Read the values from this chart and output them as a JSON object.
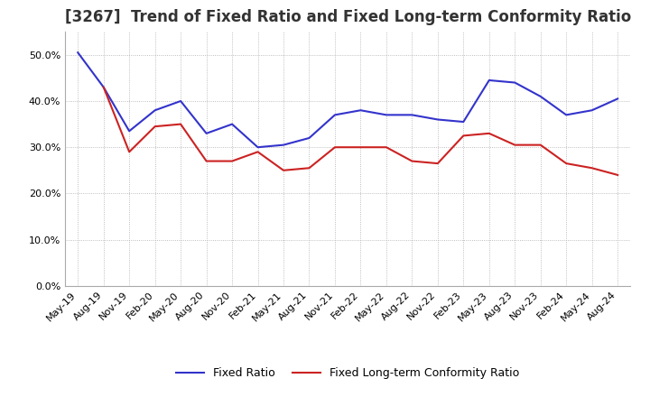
{
  "title": "[3267]  Trend of Fixed Ratio and Fixed Long-term Conformity Ratio",
  "x_labels": [
    "May-19",
    "Aug-19",
    "Nov-19",
    "Feb-20",
    "May-20",
    "Aug-20",
    "Nov-20",
    "Feb-21",
    "May-21",
    "Aug-21",
    "Nov-21",
    "Feb-22",
    "May-22",
    "Aug-22",
    "Nov-22",
    "Feb-23",
    "May-23",
    "Aug-23",
    "Nov-23",
    "Feb-24",
    "May-24",
    "Aug-24"
  ],
  "fixed_ratio": [
    50.5,
    43.0,
    33.5,
    38.0,
    40.0,
    33.0,
    35.0,
    30.0,
    30.5,
    32.0,
    37.0,
    38.0,
    37.0,
    37.0,
    36.0,
    35.5,
    44.5,
    44.0,
    41.0,
    37.0,
    38.0,
    40.5
  ],
  "fixed_lt_ratio": [
    null,
    43.0,
    29.0,
    34.5,
    35.0,
    27.0,
    27.0,
    29.0,
    25.0,
    25.5,
    30.0,
    30.0,
    30.0,
    27.0,
    26.5,
    32.5,
    33.0,
    30.5,
    30.5,
    26.5,
    25.5,
    24.0
  ],
  "fixed_ratio_color": "#3333cc",
  "fixed_lt_ratio_color": "#cc2222",
  "ylim": [
    0,
    55
  ],
  "yticks": [
    0,
    10,
    20,
    30,
    40,
    50
  ],
  "ytick_labels": [
    "0.0%",
    "10.0%",
    "20.0%",
    "30.0%",
    "40.0%",
    "50.0%"
  ],
  "grid_color": "#aaaaaa",
  "background_color": "#ffffff",
  "legend_fixed_ratio": "Fixed Ratio",
  "legend_fixed_lt_ratio": "Fixed Long-term Conformity Ratio",
  "title_fontsize": 12,
  "tick_fontsize": 8,
  "legend_fontsize": 9
}
